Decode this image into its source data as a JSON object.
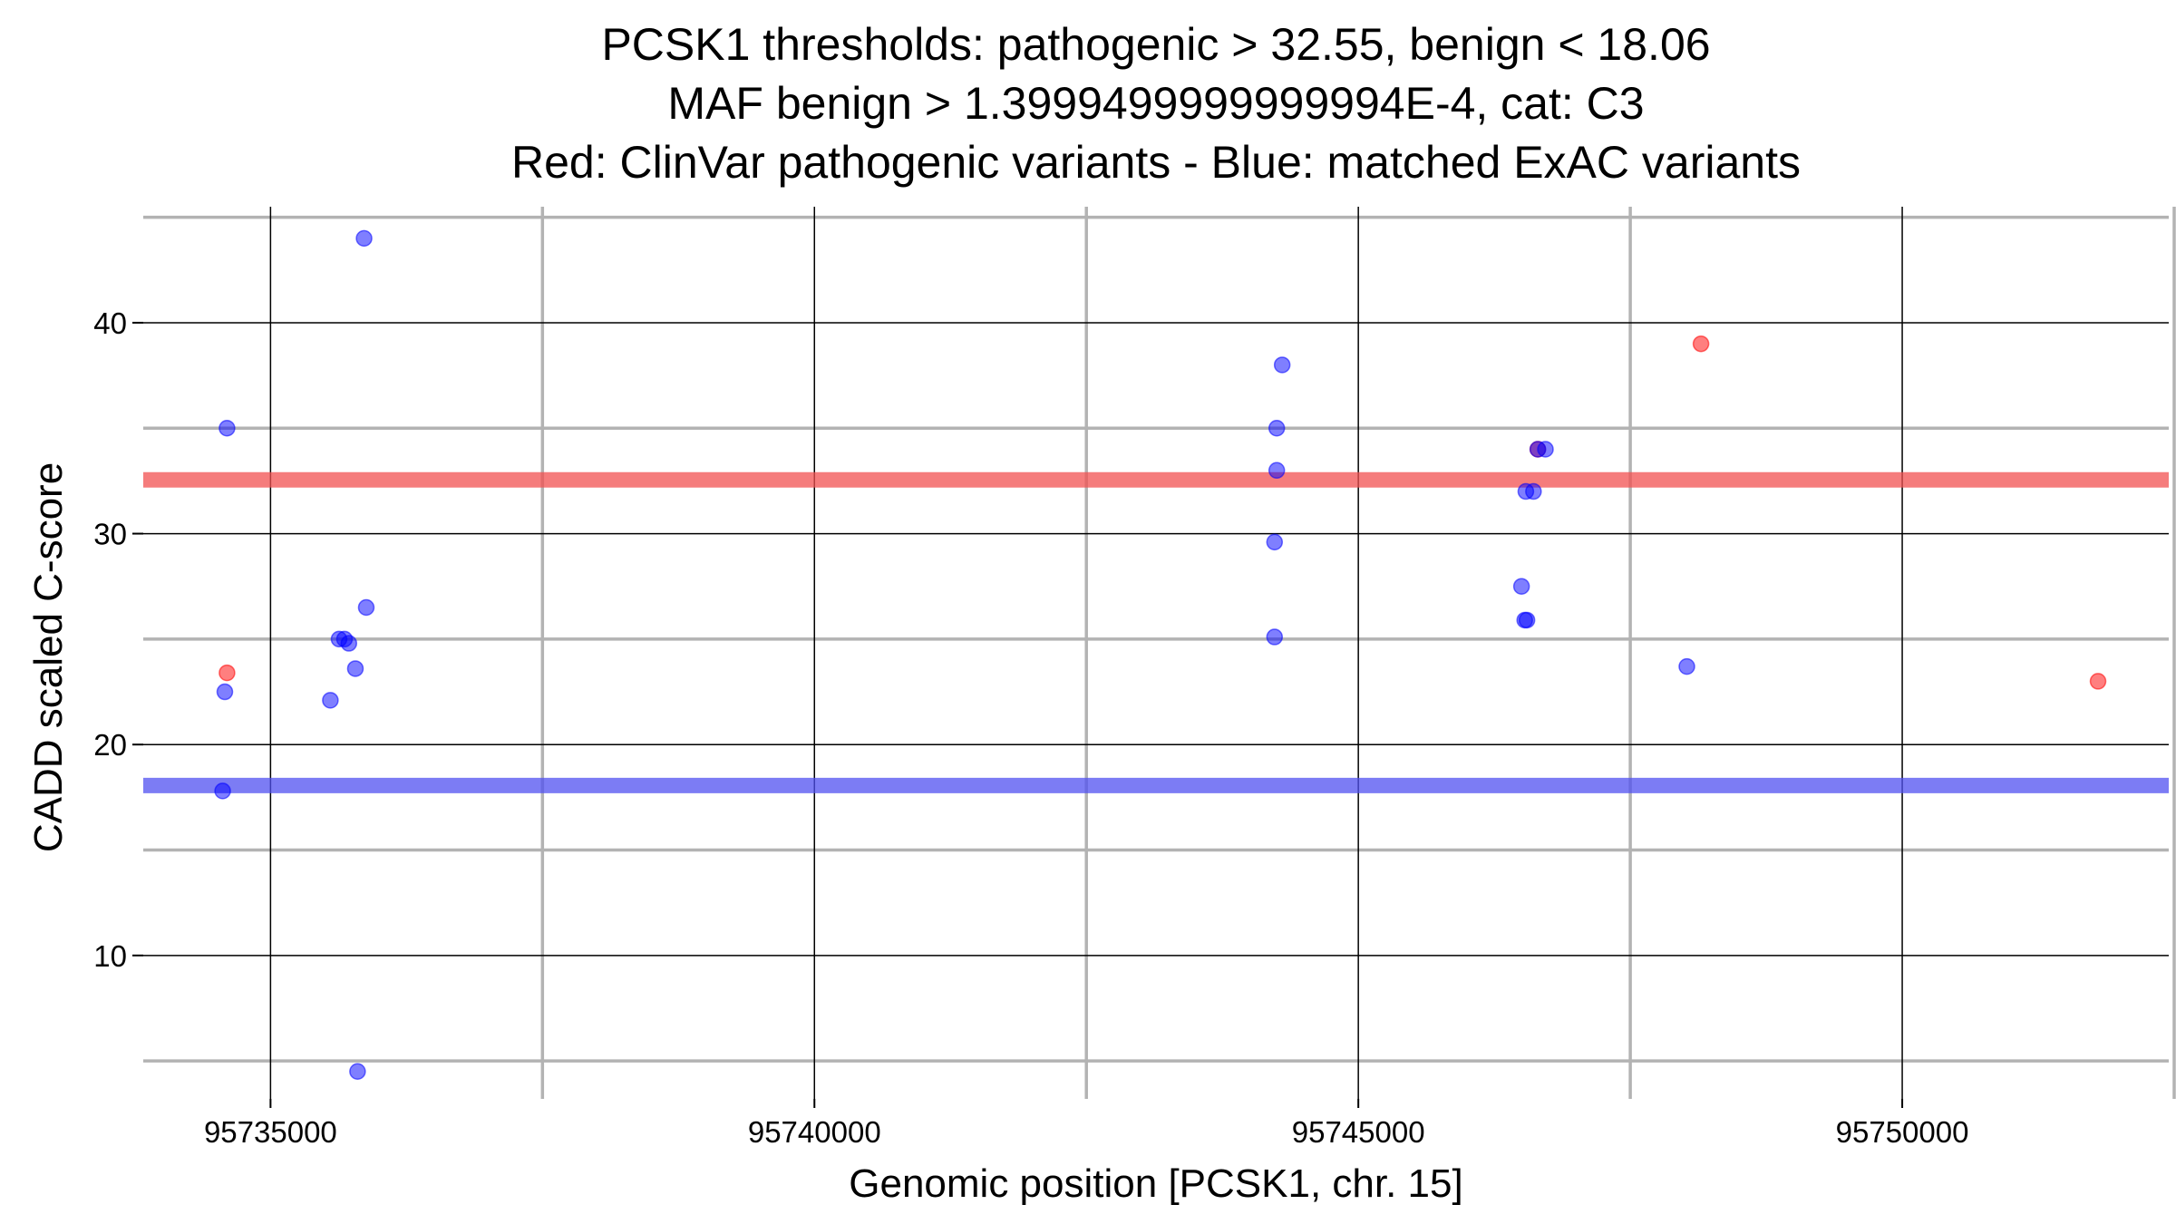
{
  "chart_data": {
    "type": "scatter",
    "title": [
      "PCSK1 thresholds: pathogenic > 32.55, benign < 18.06",
      "MAF benign > 1.3999499999999994E-4, cat: C3",
      "Red: ClinVar pathogenic variants - Blue: matched ExAC variants"
    ],
    "xlabel": "Genomic position [PCSK1, chr. 15]",
    "ylabel": "CADD scaled C-score",
    "xlim": [
      95733830,
      95752450
    ],
    "ylim": [
      3.2,
      45.5
    ],
    "x_ticks": [
      95735000,
      95740000,
      95745000,
      95750000
    ],
    "x_tick_labels": [
      "95735000",
      "95740000",
      "95745000",
      "95750000"
    ],
    "x_minor_grid": [
      95737500,
      95742500,
      95747500,
      95752500
    ],
    "y_ticks": [
      10,
      20,
      30,
      40
    ],
    "y_tick_labels": [
      "10",
      "20",
      "30",
      "40"
    ],
    "y_minor_grid": [
      5,
      15,
      25,
      35,
      45
    ],
    "thresholds": [
      {
        "name": "pathogenic",
        "value": 32.55,
        "color": "#f25050"
      },
      {
        "name": "benign",
        "value": 18.06,
        "color": "#5050f0"
      }
    ],
    "series": [
      {
        "name": "ClinVar pathogenic variants",
        "color": "#ff0000",
        "points": [
          {
            "x": 95734600,
            "y": 23.4
          },
          {
            "x": 95746650,
            "y": 34.0
          },
          {
            "x": 95748150,
            "y": 39.0
          },
          {
            "x": 95751800,
            "y": 23.0
          }
        ]
      },
      {
        "name": "matched ExAC variants",
        "color": "#0000ff",
        "points": [
          {
            "x": 95734600,
            "y": 35.0
          },
          {
            "x": 95734580,
            "y": 22.5
          },
          {
            "x": 95734560,
            "y": 17.8
          },
          {
            "x": 95735550,
            "y": 22.1
          },
          {
            "x": 95735630,
            "y": 25.0
          },
          {
            "x": 95735680,
            "y": 25.0
          },
          {
            "x": 95735720,
            "y": 24.8
          },
          {
            "x": 95735780,
            "y": 23.6
          },
          {
            "x": 95735860,
            "y": 44.0
          },
          {
            "x": 95735880,
            "y": 26.5
          },
          {
            "x": 95735800,
            "y": 4.5
          },
          {
            "x": 95744300,
            "y": 38.0
          },
          {
            "x": 95744250,
            "y": 35.0
          },
          {
            "x": 95744250,
            "y": 33.0
          },
          {
            "x": 95744230,
            "y": 29.6
          },
          {
            "x": 95744230,
            "y": 25.1
          },
          {
            "x": 95746650,
            "y": 34.0
          },
          {
            "x": 95746720,
            "y": 34.0
          },
          {
            "x": 95746540,
            "y": 32.0
          },
          {
            "x": 95746610,
            "y": 32.0
          },
          {
            "x": 95746500,
            "y": 27.5
          },
          {
            "x": 95746530,
            "y": 25.9
          },
          {
            "x": 95746550,
            "y": 25.9
          },
          {
            "x": 95748020,
            "y": 23.7
          }
        ]
      }
    ]
  }
}
